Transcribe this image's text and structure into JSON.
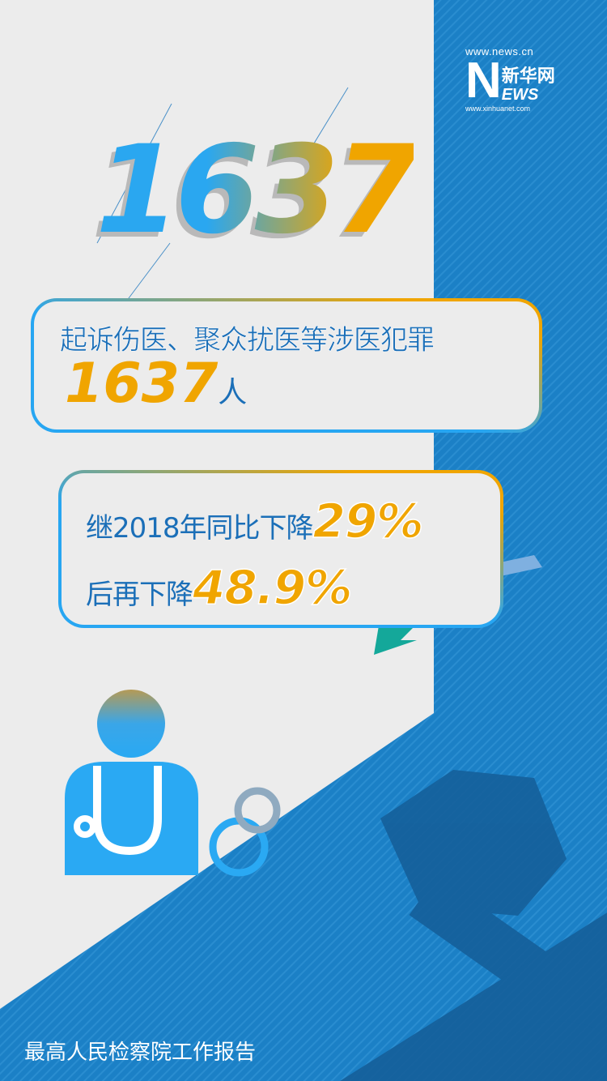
{
  "logo": {
    "url_top": "www.news.cn",
    "name_cn": "新华网",
    "letters_n": "N",
    "letters_ews": "EWS",
    "url_bottom": "www.xinhuanet.com"
  },
  "hero_number": "1637",
  "card1": {
    "line1": "起诉伤医、聚众扰医等涉医犯罪",
    "number": "1637",
    "unit": "人"
  },
  "card2": {
    "line1_prefix": "继2018年同比下降",
    "line1_value": "29%",
    "line2_prefix": "后再下降",
    "line2_value": "48.9%"
  },
  "footer": "最高人民检察院工作报告",
  "colors": {
    "blue_panel": "#1a7fc4",
    "accent_orange": "#f0a500",
    "text_blue": "#1b6fb8",
    "background": "#ececec"
  }
}
